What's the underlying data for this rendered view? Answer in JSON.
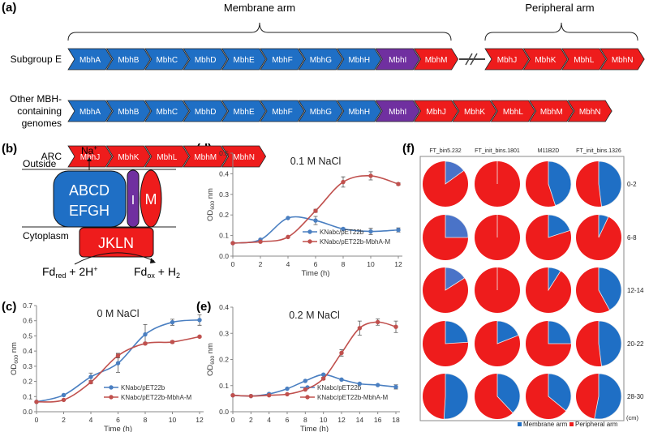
{
  "panel_labels": {
    "a": "(a)",
    "b": "(b)",
    "c": "(c)",
    "d": "(d)",
    "e": "(e)",
    "f": "(f)"
  },
  "colors": {
    "membrane": "#1f6fc5",
    "membrane_light": "#4a73c8",
    "purple": "#7030a0",
    "red": "#ee1c1c",
    "blue_line": "#4a7fc1",
    "red_line": "#c0504d"
  },
  "panel_a": {
    "membrane_arm_label": "Membrane arm",
    "peripheral_arm_label": "Peripheral arm",
    "rows": [
      {
        "label": [
          "Subgroup E"
        ],
        "genes": [
          {
            "name": "MbhA",
            "type": "membrane"
          },
          {
            "name": "MbhB",
            "type": "membrane"
          },
          {
            "name": "MbhC",
            "type": "membrane"
          },
          {
            "name": "MbhD",
            "type": "membrane"
          },
          {
            "name": "MbhE",
            "type": "membrane"
          },
          {
            "name": "MbhF",
            "type": "membrane"
          },
          {
            "name": "MbhG",
            "type": "membrane"
          },
          {
            "name": "MbhH",
            "type": "membrane"
          },
          {
            "name": "MbhI",
            "type": "purple"
          },
          {
            "name": "MbhM",
            "type": "red"
          }
        ],
        "genes_after_break": [
          {
            "name": "MbhJ",
            "type": "red"
          },
          {
            "name": "MbhK",
            "type": "red"
          },
          {
            "name": "MbhL",
            "type": "red"
          },
          {
            "name": "MbhN",
            "type": "red"
          }
        ]
      },
      {
        "label": [
          "Other MBH-",
          "containing",
          "genomes"
        ],
        "genes": [
          {
            "name": "MbhA",
            "type": "membrane"
          },
          {
            "name": "MbhB",
            "type": "membrane"
          },
          {
            "name": "MbhC",
            "type": "membrane"
          },
          {
            "name": "MbhD",
            "type": "membrane"
          },
          {
            "name": "MbhE",
            "type": "membrane"
          },
          {
            "name": "MbhF",
            "type": "membrane"
          },
          {
            "name": "MbhG",
            "type": "membrane"
          },
          {
            "name": "MbhH",
            "type": "membrane"
          },
          {
            "name": "MbhI",
            "type": "purple"
          },
          {
            "name": "MbhJ",
            "type": "red"
          },
          {
            "name": "MbhK",
            "type": "red"
          },
          {
            "name": "MbhL",
            "type": "red"
          },
          {
            "name": "MbhM",
            "type": "red"
          },
          {
            "name": "MbhN",
            "type": "red"
          }
        ]
      },
      {
        "label": [
          "ARC"
        ],
        "genes": [
          {
            "name": "MbhJ",
            "type": "red"
          },
          {
            "name": "MbhK",
            "type": "red"
          },
          {
            "name": "MbhL",
            "type": "red"
          },
          {
            "name": "MbhM",
            "type": "red"
          },
          {
            "name": "MbhN",
            "type": "red"
          }
        ]
      }
    ]
  },
  "panel_b": {
    "outside": "Outside",
    "cytoplasm": "Cytoplasm",
    "na": "Na",
    "na_sup": "+",
    "abcd": "ABCD",
    "efgh": "EFGH",
    "i": "I",
    "m": "M",
    "jkln": "JKLN",
    "fd_red": "Fd",
    "fd_red_sub": "red",
    "fd_red_rest": " + 2H",
    "fd_red_sup": "+",
    "fd_ox": "Fd",
    "fd_ox_sub": "ox",
    "fd_ox_rest": " + H",
    "fd_ox_sub2": "2"
  },
  "chart_data": [
    {
      "id": "c",
      "type": "line",
      "title": "0 M NaCl",
      "xlabel": "Time (h)",
      "ylabel": "OD",
      "ylabel_sub": "600",
      "ylabel_unit": " nm",
      "xlim": [
        0,
        12
      ],
      "xticks": [
        0,
        2,
        4,
        6,
        8,
        10,
        12
      ],
      "ylim": [
        0,
        0.7
      ],
      "yticks": [
        "0.0",
        "0.1",
        "0.2",
        "0.3",
        "0.4",
        "0.5",
        "0.6",
        "0.7"
      ],
      "legend": "bottom-right",
      "series": [
        {
          "name": "KNabc/pET22b",
          "color": "#4a7fc1",
          "x": [
            0,
            2,
            4,
            6,
            8,
            10,
            12
          ],
          "y": [
            0.065,
            0.11,
            0.23,
            0.32,
            0.51,
            0.59,
            0.605
          ],
          "err": [
            0,
            0.005,
            0.025,
            0.06,
            0.065,
            0.02,
            0.035
          ]
        },
        {
          "name": "KNabc/pET22b-MbhA-M",
          "color": "#c0504d",
          "x": [
            0,
            2,
            4,
            6,
            8,
            10,
            12
          ],
          "y": [
            0.065,
            0.078,
            0.195,
            0.37,
            0.45,
            0.46,
            0.495
          ],
          "err": [
            0,
            0.005,
            0.01,
            0.015,
            0.008,
            0.008,
            0.006
          ]
        }
      ]
    },
    {
      "id": "d",
      "type": "line",
      "title": "0.1 M NaCl",
      "xlabel": "Time (h)",
      "ylabel": "OD",
      "ylabel_sub": "600",
      "ylabel_unit": " nm",
      "xlim": [
        0,
        12
      ],
      "xticks": [
        0,
        2,
        4,
        6,
        8,
        10,
        12
      ],
      "ylim": [
        0,
        0.5
      ],
      "yticks": [
        "0.0",
        "0.1",
        "0.2",
        "0.3",
        "0.4",
        "0.5"
      ],
      "legend": "bottom-right",
      "series": [
        {
          "name": "KNabc/pET22b",
          "color": "#4a7fc1",
          "x": [
            0,
            2,
            4,
            6,
            8,
            10,
            12
          ],
          "y": [
            0.063,
            0.08,
            0.185,
            0.173,
            0.132,
            0.12,
            0.127
          ],
          "err": [
            0,
            0.004,
            0.004,
            0.02,
            0.005,
            0.015,
            0.01
          ]
        },
        {
          "name": "KNabc/pET22b-MbhA-M",
          "color": "#c0504d",
          "x": [
            0,
            2,
            4,
            6,
            8,
            10,
            12
          ],
          "y": [
            0.063,
            0.07,
            0.093,
            0.22,
            0.36,
            0.39,
            0.35
          ],
          "err": [
            0,
            0.004,
            0.004,
            0.008,
            0.025,
            0.02,
            0.006
          ]
        }
      ]
    },
    {
      "id": "e",
      "type": "line",
      "title": "0.2 M NaCl",
      "xlabel": "Time (h)",
      "ylabel": "OD",
      "ylabel_sub": "600",
      "ylabel_unit": " nm",
      "xlim": [
        0,
        18
      ],
      "xticks": [
        0,
        2,
        4,
        6,
        8,
        10,
        12,
        14,
        16,
        18
      ],
      "ylim": [
        0,
        0.4
      ],
      "yticks": [
        "0.0",
        "0.1",
        "0.2",
        "0.3",
        "0.4"
      ],
      "legend": "bottom-right",
      "series": [
        {
          "name": "KNabc/pET22b",
          "color": "#4a7fc1",
          "x": [
            0,
            2,
            4,
            6,
            8,
            10,
            12,
            14,
            16,
            18
          ],
          "y": [
            0.063,
            0.06,
            0.068,
            0.088,
            0.118,
            0.142,
            0.123,
            0.107,
            0.102,
            0.095
          ],
          "err": [
            0,
            0,
            0.003,
            0.003,
            0.003,
            0.004,
            0.004,
            0.003,
            0.003,
            0.008
          ]
        },
        {
          "name": "KNabc/pET22b-MbhA-M",
          "color": "#c0504d",
          "x": [
            0,
            2,
            4,
            6,
            8,
            10,
            12,
            14,
            16,
            18
          ],
          "y": [
            0.063,
            0.06,
            0.063,
            0.067,
            0.085,
            0.127,
            0.225,
            0.32,
            0.343,
            0.325
          ],
          "err": [
            0,
            0,
            0.003,
            0.003,
            0.003,
            0.005,
            0.012,
            0.027,
            0.012,
            0.022
          ]
        }
      ]
    },
    {
      "id": "f",
      "type": "pie",
      "unit_label": "(cm)",
      "columns": [
        "FT_bin5.232",
        "FT_init_bins.1801",
        "M11B2D",
        "FT_init_bins.1326"
      ],
      "rows": [
        "0-2",
        "6-8",
        "12-14",
        "20-22",
        "28-30"
      ],
      "legend": [
        "Membrane arm",
        "Peripheral arm"
      ],
      "membrane_fraction": [
        [
          0.15,
          0,
          0.45,
          0.48
        ],
        [
          0.25,
          0,
          0.2,
          0.07
        ],
        [
          0.16,
          0,
          0.09,
          0.42
        ],
        [
          0.24,
          0.19,
          0.25,
          0.48
        ],
        [
          0.51,
          0.38,
          0.36,
          0.53
        ]
      ]
    }
  ]
}
